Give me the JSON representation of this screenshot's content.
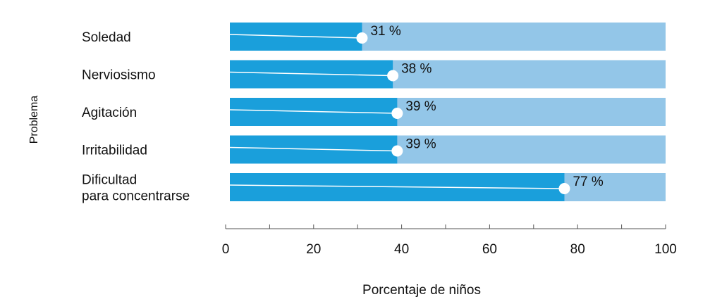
{
  "chart_data": {
    "type": "bar",
    "orientation": "horizontal",
    "categories": [
      "Soledad",
      "Nerviosismo",
      "Agitación",
      "Irritabilidad",
      "Dificultad para concentrarse"
    ],
    "category_lines": [
      [
        "Soledad"
      ],
      [
        "Nerviosismo"
      ],
      [
        "Agitación"
      ],
      [
        "Irritabilidad"
      ],
      [
        "Dificultad",
        "para concentrarse"
      ]
    ],
    "values": [
      31,
      38,
      39,
      39,
      77
    ],
    "value_labels": [
      "31 %",
      "38 %",
      "39 %",
      "39 %",
      "77 %"
    ],
    "xlabel": "Porcentaje de niños",
    "ylabel": "Problema",
    "xlim": [
      0,
      100
    ],
    "x_ticks": [
      0,
      20,
      40,
      60,
      80,
      100
    ],
    "grid": false,
    "colors": {
      "bar": "#1a9fdb",
      "background_bar": "#93c6e8",
      "marker": "#ffffff"
    }
  }
}
